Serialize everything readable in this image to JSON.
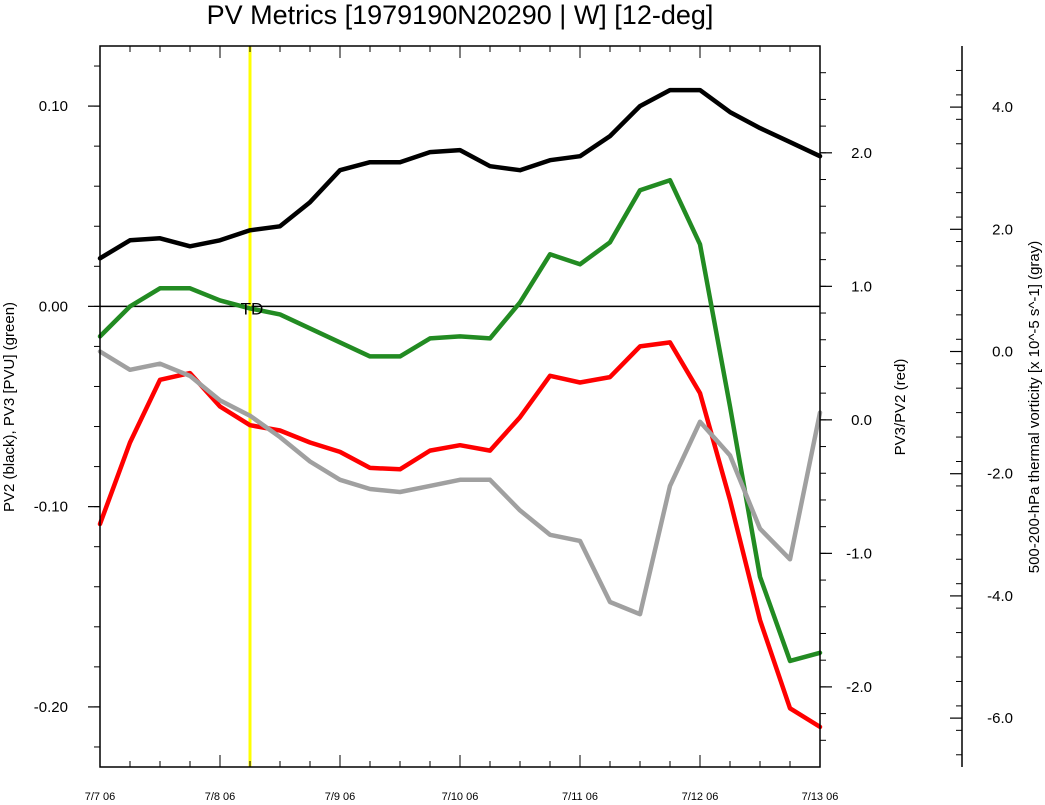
{
  "chart_data": {
    "type": "line",
    "title": "PV Metrics [1979190N20290 | W] [12-deg]",
    "x_tick_labels": [
      "7/7 06",
      "7/8 06",
      "7/9 06",
      "7/10 06",
      "7/11 06",
      "7/12 06",
      "7/13 06"
    ],
    "x_range_days": [
      0,
      6
    ],
    "annotation": {
      "label": "TD",
      "x_days": 1.25
    },
    "y_left": {
      "label": "PV2 (black), PV3 [PVU] (green)",
      "range": [
        -0.23,
        0.13
      ],
      "ticks": [
        0.1,
        0.0,
        -0.1,
        -0.2
      ],
      "tick_labels": [
        "0.10",
        "0.00",
        "-0.10",
        "-0.20"
      ]
    },
    "y_right": {
      "label": "PV3/PV2 (red)",
      "range": [
        -2.6,
        2.8
      ],
      "ticks": [
        2.0,
        1.0,
        0.0,
        -1.0,
        -2.0
      ],
      "tick_labels": [
        "2.0",
        "1.0",
        "0.0",
        "-1.0",
        "-2.0"
      ]
    },
    "y_far_right": {
      "label": "500-200-hPa thermal vorticity [x 10^-5 s^-1] (gray)",
      "range": [
        -6.8,
        5.0
      ],
      "ticks": [
        4.0,
        2.0,
        0.0,
        -2.0,
        -4.0,
        -6.0
      ],
      "tick_labels": [
        "4.0",
        "2.0",
        "0.0",
        "-2.0",
        "-4.0",
        "-6.0"
      ]
    },
    "x_days": [
      0,
      0.25,
      0.5,
      0.75,
      1.0,
      1.25,
      1.5,
      1.75,
      2.0,
      2.25,
      2.5,
      2.75,
      3.0,
      3.25,
      3.5,
      3.75,
      4.0,
      4.25,
      4.5,
      4.75,
      5.0,
      5.25,
      5.5,
      5.75,
      6.0
    ],
    "series": [
      {
        "axis": "left",
        "color": "#000000",
        "values": [
          0.024,
          0.033,
          0.034,
          0.03,
          0.033,
          0.038,
          0.04,
          0.052,
          0.068,
          0.072,
          0.072,
          0.077,
          0.078,
          0.07,
          0.068,
          0.073,
          0.075,
          0.085,
          0.1,
          0.108,
          0.108,
          0.097,
          0.089,
          0.082,
          0.075
        ]
      },
      {
        "axis": "left",
        "color": "#228b22",
        "values": [
          -0.015,
          0.0,
          0.009,
          0.009,
          0.003,
          -0.001,
          -0.004,
          -0.011,
          -0.018,
          -0.025,
          -0.025,
          -0.016,
          -0.015,
          -0.016,
          0.002,
          0.026,
          0.021,
          0.032,
          0.058,
          0.063,
          0.031,
          -0.05,
          -0.135,
          -0.177,
          -0.173
        ]
      },
      {
        "axis": "right",
        "color": "#ff0000",
        "values": [
          -0.78,
          -0.17,
          0.3,
          0.35,
          0.1,
          -0.04,
          -0.08,
          -0.17,
          -0.24,
          -0.36,
          -0.37,
          -0.23,
          -0.19,
          -0.23,
          0.02,
          0.33,
          0.28,
          0.32,
          0.55,
          0.58,
          0.2,
          -0.6,
          -1.5,
          -2.16,
          -2.3
        ]
      },
      {
        "axis": "far_right",
        "color": "#a0a0a0",
        "values": [
          0.0,
          -0.3,
          -0.2,
          -0.4,
          -0.8,
          -1.05,
          -1.4,
          -1.8,
          -2.1,
          -2.25,
          -2.3,
          -2.2,
          -2.1,
          -2.1,
          -2.6,
          -3.0,
          -3.1,
          -4.1,
          -4.3,
          -2.2,
          -1.15,
          -1.7,
          -2.9,
          -3.4,
          -1.0
        ]
      }
    ]
  }
}
